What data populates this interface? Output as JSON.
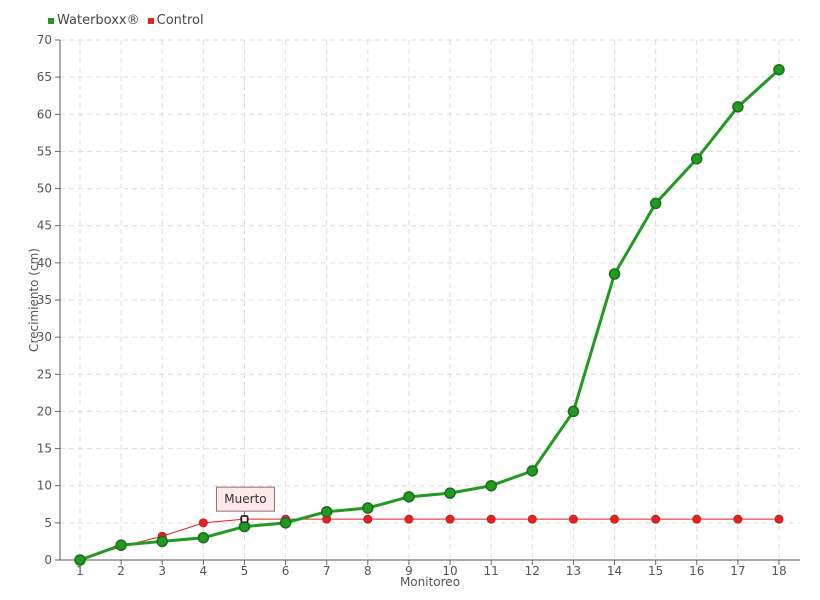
{
  "chart_data": {
    "type": "line",
    "title": "",
    "xlabel": "Monitoreo",
    "ylabel": "Crecimiento (cm)",
    "categories": [
      "1",
      "2",
      "3",
      "4",
      "5",
      "6",
      "7",
      "8",
      "9",
      "10",
      "11",
      "12",
      "13",
      "14",
      "15",
      "16",
      "17",
      "18"
    ],
    "ylim": [
      0,
      70
    ],
    "yticks": [
      0,
      5,
      10,
      15,
      20,
      25,
      30,
      35,
      40,
      45,
      50,
      55,
      60,
      65,
      70
    ],
    "grid": true,
    "legend_position": "top-left",
    "series": [
      {
        "name": "Waterboxx®",
        "color": "#229922",
        "values": [
          0,
          2,
          2.5,
          3,
          4.5,
          5,
          6.5,
          7,
          8.5,
          9,
          10,
          12,
          20,
          38.5,
          48,
          54,
          61,
          66
        ]
      },
      {
        "name": "Control",
        "color": "#e32222",
        "values": [
          0,
          1.8,
          3.2,
          5,
          5.5,
          5.5,
          5.5,
          5.5,
          5.5,
          5.5,
          5.5,
          5.5,
          5.5,
          5.5,
          5.5,
          5.5,
          5.5,
          5.5
        ]
      }
    ],
    "annotations": [
      {
        "text": "Muerto",
        "series": "Control",
        "x": "5",
        "y": 5.5
      }
    ]
  }
}
